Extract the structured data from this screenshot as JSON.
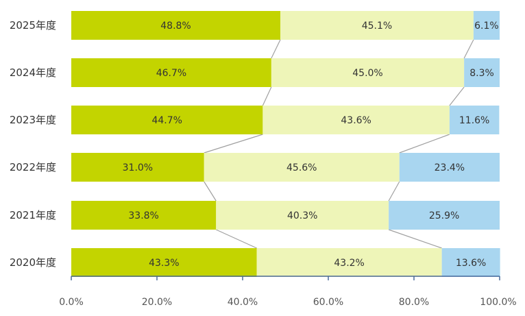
{
  "chart_data": {
    "type": "bar",
    "orientation": "horizontal",
    "stacked": true,
    "percent": true,
    "categories": [
      "2025年度",
      "2024年度",
      "2023年度",
      "2022年度",
      "2021年度",
      "2020年度"
    ],
    "series": [
      {
        "values": [
          48.8,
          46.7,
          44.7,
          31.0,
          33.8,
          43.3
        ],
        "labels": [
          "48.8%",
          "46.7%",
          "44.7%",
          "31.0%",
          "33.8%",
          "43.3%"
        ],
        "color": "#c3d400"
      },
      {
        "values": [
          45.1,
          45.0,
          43.6,
          45.6,
          40.3,
          43.2
        ],
        "labels": [
          "45.1%",
          "45.0%",
          "43.6%",
          "45.6%",
          "40.3%",
          "43.2%"
        ],
        "color": "#eef5b8"
      },
      {
        "values": [
          6.1,
          8.3,
          11.6,
          23.4,
          25.9,
          13.6
        ],
        "labels": [
          "6.1%",
          "8.3%",
          "11.6%",
          "23.4%",
          "25.9%",
          "13.6%"
        ],
        "color": "#a9d6f0"
      }
    ],
    "xlim": [
      0,
      100
    ],
    "xticks": [
      "0.0%",
      "20.0%",
      "40.0%",
      "60.0%",
      "80.0%",
      "100.0%"
    ],
    "series_lines": true,
    "grid": false,
    "legend": "none"
  }
}
